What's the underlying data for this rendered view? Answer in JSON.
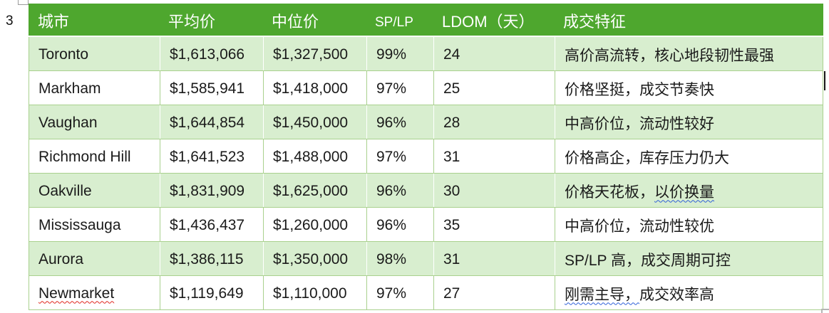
{
  "page": {
    "margin_number": "3"
  },
  "colors": {
    "header_bg": "#4EA72E",
    "band_green": "#D8EECF",
    "grid_line": "#A9D18E",
    "header_text": "#FFFFFF",
    "body_text": "#1A1A1A",
    "spellcheck_red": "#E0261F",
    "grammar_blue": "#2F5FD9"
  },
  "table": {
    "headers": [
      {
        "label": "城市"
      },
      {
        "label": "平均价"
      },
      {
        "label": "中位价"
      },
      {
        "label": "SP/LP"
      },
      {
        "label": "LDOM（天）"
      },
      {
        "label": "成交特征"
      }
    ],
    "rows": [
      {
        "city": "Toronto",
        "city_underline": "none",
        "avg": "$1,613,066",
        "median": "$1,327,500",
        "sp_lp": "99%",
        "ldom": "24",
        "feature_parts": [
          {
            "text": "高价高流转，核心地段韧性最强",
            "underline": "none"
          }
        ]
      },
      {
        "city": "Markham",
        "city_underline": "none",
        "avg": "$1,585,941",
        "median": "$1,418,000",
        "sp_lp": "97%",
        "ldom": "25",
        "feature_parts": [
          {
            "text": "价格坚挺，成交节奏快",
            "underline": "none"
          }
        ]
      },
      {
        "city": "Vaughan",
        "city_underline": "none",
        "avg": "$1,644,854",
        "median": "$1,450,000",
        "sp_lp": "96%",
        "ldom": "28",
        "feature_parts": [
          {
            "text": "中高价位，流动性较好",
            "underline": "none"
          }
        ]
      },
      {
        "city": "Richmond Hill",
        "city_underline": "none",
        "avg": "$1,641,523",
        "median": "$1,488,000",
        "sp_lp": "97%",
        "ldom": "31",
        "feature_parts": [
          {
            "text": "价格高企，库存压力仍大",
            "underline": "none"
          }
        ]
      },
      {
        "city": "Oakville",
        "city_underline": "none",
        "avg": "$1,831,909",
        "median": "$1,625,000",
        "sp_lp": "96%",
        "ldom": "30",
        "feature_parts": [
          {
            "text": "价格天花板，",
            "underline": "none"
          },
          {
            "text": "以价换量",
            "underline": "blue-wavy"
          }
        ]
      },
      {
        "city": "Mississauga",
        "city_underline": "none",
        "avg": "$1,436,437",
        "median": "$1,260,000",
        "sp_lp": "96%",
        "ldom": "35",
        "feature_parts": [
          {
            "text": "中高价位，流动性较优",
            "underline": "none"
          }
        ]
      },
      {
        "city": "Aurora",
        "city_underline": "none",
        "avg": "$1,386,115",
        "median": "$1,350,000",
        "sp_lp": "98%",
        "ldom": "31",
        "feature_parts": [
          {
            "text": "SP/LP 高，成交周期可控",
            "underline": "none"
          }
        ]
      },
      {
        "city": "Newmarket",
        "city_underline": "red-wavy",
        "avg": "$1,119,649",
        "median": "$1,110,000",
        "sp_lp": "97%",
        "ldom": "27",
        "feature_parts": [
          {
            "text": "刚需主导，",
            "underline": "blue-wavy"
          },
          {
            "text": "成交效率高",
            "underline": "none"
          }
        ]
      }
    ]
  }
}
